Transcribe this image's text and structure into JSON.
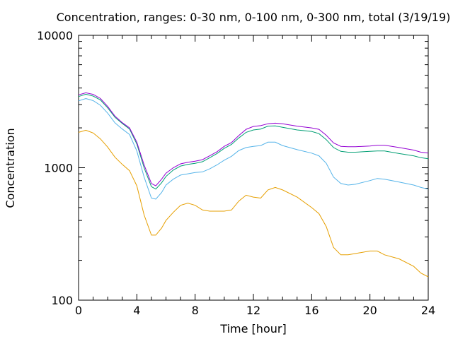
{
  "chart_data": {
    "type": "line",
    "title": "Concentration, ranges: 0-30 nm, 0-100 nm, 0-300 nm, total (3/19/19)",
    "xlabel": "Time [hour]",
    "ylabel": "Concentration",
    "x_range": [
      0,
      24
    ],
    "y_range": [
      100,
      10000
    ],
    "y_scale": "log",
    "x_ticks": [
      "0",
      "4",
      "8",
      "12",
      "16",
      "20",
      "24"
    ],
    "y_ticks": [
      "100",
      "1000",
      "10000"
    ],
    "grid": false,
    "legend": "none",
    "series": [
      {
        "color": "#9400d3",
        "points": [
          [
            0,
            3550
          ],
          [
            0.5,
            3680
          ],
          [
            1,
            3580
          ],
          [
            1.5,
            3330
          ],
          [
            2,
            2900
          ],
          [
            2.5,
            2450
          ],
          [
            3,
            2190
          ],
          [
            3.5,
            2000
          ],
          [
            4,
            1560
          ],
          [
            4.5,
            1050
          ],
          [
            5,
            760
          ],
          [
            5.3,
            730
          ],
          [
            5.7,
            820
          ],
          [
            6,
            910
          ],
          [
            6.5,
            1000
          ],
          [
            7,
            1070
          ],
          [
            7.5,
            1100
          ],
          [
            8,
            1120
          ],
          [
            8.5,
            1150
          ],
          [
            9,
            1230
          ],
          [
            9.5,
            1320
          ],
          [
            10,
            1450
          ],
          [
            10.5,
            1550
          ],
          [
            11,
            1750
          ],
          [
            11.5,
            1950
          ],
          [
            12,
            2050
          ],
          [
            12.5,
            2080
          ],
          [
            13,
            2150
          ],
          [
            13.5,
            2170
          ],
          [
            14,
            2150
          ],
          [
            15,
            2060
          ],
          [
            16,
            2000
          ],
          [
            16.5,
            1950
          ],
          [
            17,
            1760
          ],
          [
            17.5,
            1540
          ],
          [
            18,
            1450
          ],
          [
            18.5,
            1440
          ],
          [
            19,
            1440
          ],
          [
            20,
            1460
          ],
          [
            20.5,
            1480
          ],
          [
            21,
            1480
          ],
          [
            22,
            1420
          ],
          [
            23,
            1360
          ],
          [
            23.5,
            1310
          ],
          [
            24,
            1290
          ]
        ]
      },
      {
        "color": "#009e73",
        "points": [
          [
            0,
            3450
          ],
          [
            0.5,
            3590
          ],
          [
            1,
            3480
          ],
          [
            1.5,
            3250
          ],
          [
            2,
            2830
          ],
          [
            2.5,
            2400
          ],
          [
            3,
            2160
          ],
          [
            3.5,
            1960
          ],
          [
            4,
            1510
          ],
          [
            4.5,
            1000
          ],
          [
            5,
            720
          ],
          [
            5.3,
            690
          ],
          [
            5.7,
            770
          ],
          [
            6,
            860
          ],
          [
            6.5,
            960
          ],
          [
            7,
            1030
          ],
          [
            7.5,
            1060
          ],
          [
            8,
            1080
          ],
          [
            8.5,
            1110
          ],
          [
            9,
            1190
          ],
          [
            9.5,
            1280
          ],
          [
            10,
            1400
          ],
          [
            10.5,
            1500
          ],
          [
            11,
            1680
          ],
          [
            11.5,
            1850
          ],
          [
            12,
            1930
          ],
          [
            12.5,
            1960
          ],
          [
            13,
            2060
          ],
          [
            13.5,
            2070
          ],
          [
            14,
            2020
          ],
          [
            15,
            1930
          ],
          [
            16,
            1880
          ],
          [
            16.5,
            1810
          ],
          [
            17,
            1630
          ],
          [
            17.5,
            1420
          ],
          [
            18,
            1330
          ],
          [
            18.5,
            1310
          ],
          [
            19,
            1310
          ],
          [
            20,
            1330
          ],
          [
            20.5,
            1340
          ],
          [
            21,
            1340
          ],
          [
            22,
            1280
          ],
          [
            23,
            1230
          ],
          [
            23.5,
            1190
          ],
          [
            24,
            1170
          ]
        ]
      },
      {
        "color": "#56b4e9",
        "points": [
          [
            0,
            3200
          ],
          [
            0.5,
            3330
          ],
          [
            1,
            3210
          ],
          [
            1.5,
            2960
          ],
          [
            2,
            2580
          ],
          [
            2.5,
            2180
          ],
          [
            3,
            1960
          ],
          [
            3.5,
            1780
          ],
          [
            4,
            1340
          ],
          [
            4.5,
            850
          ],
          [
            5,
            590
          ],
          [
            5.3,
            580
          ],
          [
            5.7,
            650
          ],
          [
            6,
            740
          ],
          [
            6.5,
            820
          ],
          [
            7,
            880
          ],
          [
            7.5,
            900
          ],
          [
            8,
            920
          ],
          [
            8.5,
            930
          ],
          [
            9,
            980
          ],
          [
            9.5,
            1050
          ],
          [
            10,
            1140
          ],
          [
            10.5,
            1220
          ],
          [
            11,
            1350
          ],
          [
            11.5,
            1420
          ],
          [
            12,
            1450
          ],
          [
            12.5,
            1470
          ],
          [
            13,
            1560
          ],
          [
            13.5,
            1560
          ],
          [
            14,
            1470
          ],
          [
            15,
            1370
          ],
          [
            16,
            1290
          ],
          [
            16.5,
            1230
          ],
          [
            17,
            1080
          ],
          [
            17.5,
            850
          ],
          [
            18,
            760
          ],
          [
            18.5,
            740
          ],
          [
            19,
            750
          ],
          [
            20,
            800
          ],
          [
            20.5,
            830
          ],
          [
            21,
            820
          ],
          [
            22,
            780
          ],
          [
            23,
            740
          ],
          [
            23.5,
            710
          ],
          [
            24,
            690
          ]
        ]
      },
      {
        "color": "#e69f00",
        "points": [
          [
            0,
            1850
          ],
          [
            0.5,
            1920
          ],
          [
            1,
            1830
          ],
          [
            1.5,
            1650
          ],
          [
            2,
            1430
          ],
          [
            2.5,
            1200
          ],
          [
            3,
            1060
          ],
          [
            3.5,
            950
          ],
          [
            4,
            730
          ],
          [
            4.5,
            440
          ],
          [
            5,
            310
          ],
          [
            5.3,
            310
          ],
          [
            5.7,
            350
          ],
          [
            6,
            400
          ],
          [
            6.5,
            460
          ],
          [
            7,
            520
          ],
          [
            7.5,
            540
          ],
          [
            8,
            520
          ],
          [
            8.5,
            480
          ],
          [
            9,
            470
          ],
          [
            10,
            470
          ],
          [
            10.5,
            480
          ],
          [
            11,
            560
          ],
          [
            11.5,
            620
          ],
          [
            12,
            600
          ],
          [
            12.5,
            590
          ],
          [
            13,
            680
          ],
          [
            13.5,
            710
          ],
          [
            14,
            680
          ],
          [
            15,
            600
          ],
          [
            16,
            500
          ],
          [
            16.5,
            450
          ],
          [
            17,
            360
          ],
          [
            17.5,
            250
          ],
          [
            18,
            220
          ],
          [
            18.5,
            220
          ],
          [
            19,
            225
          ],
          [
            20,
            235
          ],
          [
            20.5,
            235
          ],
          [
            21,
            220
          ],
          [
            22,
            205
          ],
          [
            23,
            180
          ],
          [
            23.5,
            160
          ],
          [
            24,
            150
          ]
        ]
      }
    ]
  }
}
